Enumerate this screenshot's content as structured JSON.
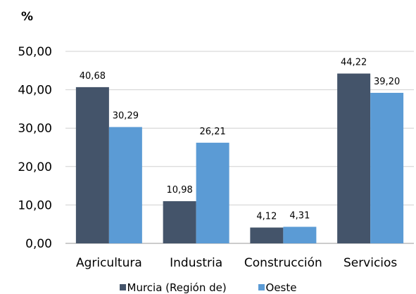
{
  "chart_data": {
    "type": "bar",
    "unit_label": "%",
    "categories": [
      "Agricultura",
      "Industria",
      "Construcción",
      "Servicios"
    ],
    "series": [
      {
        "name": "Murcia (Región de)",
        "color": "#44546a",
        "values": [
          40.68,
          10.98,
          4.12,
          44.22
        ],
        "labels": [
          "40,68",
          "10,98",
          "4,12",
          "44,22"
        ]
      },
      {
        "name": "Oeste",
        "color": "#5b9bd5",
        "values": [
          30.29,
          26.21,
          4.31,
          39.2
        ],
        "labels": [
          "30,29",
          "26,21",
          "4,31",
          "39,20"
        ]
      }
    ],
    "y_ticks": [
      "0,00",
      "10,00",
      "20,00",
      "30,00",
      "40,00",
      "50,00"
    ],
    "ylim": [
      0,
      50
    ],
    "grid": true,
    "legend_position": "bottom"
  }
}
